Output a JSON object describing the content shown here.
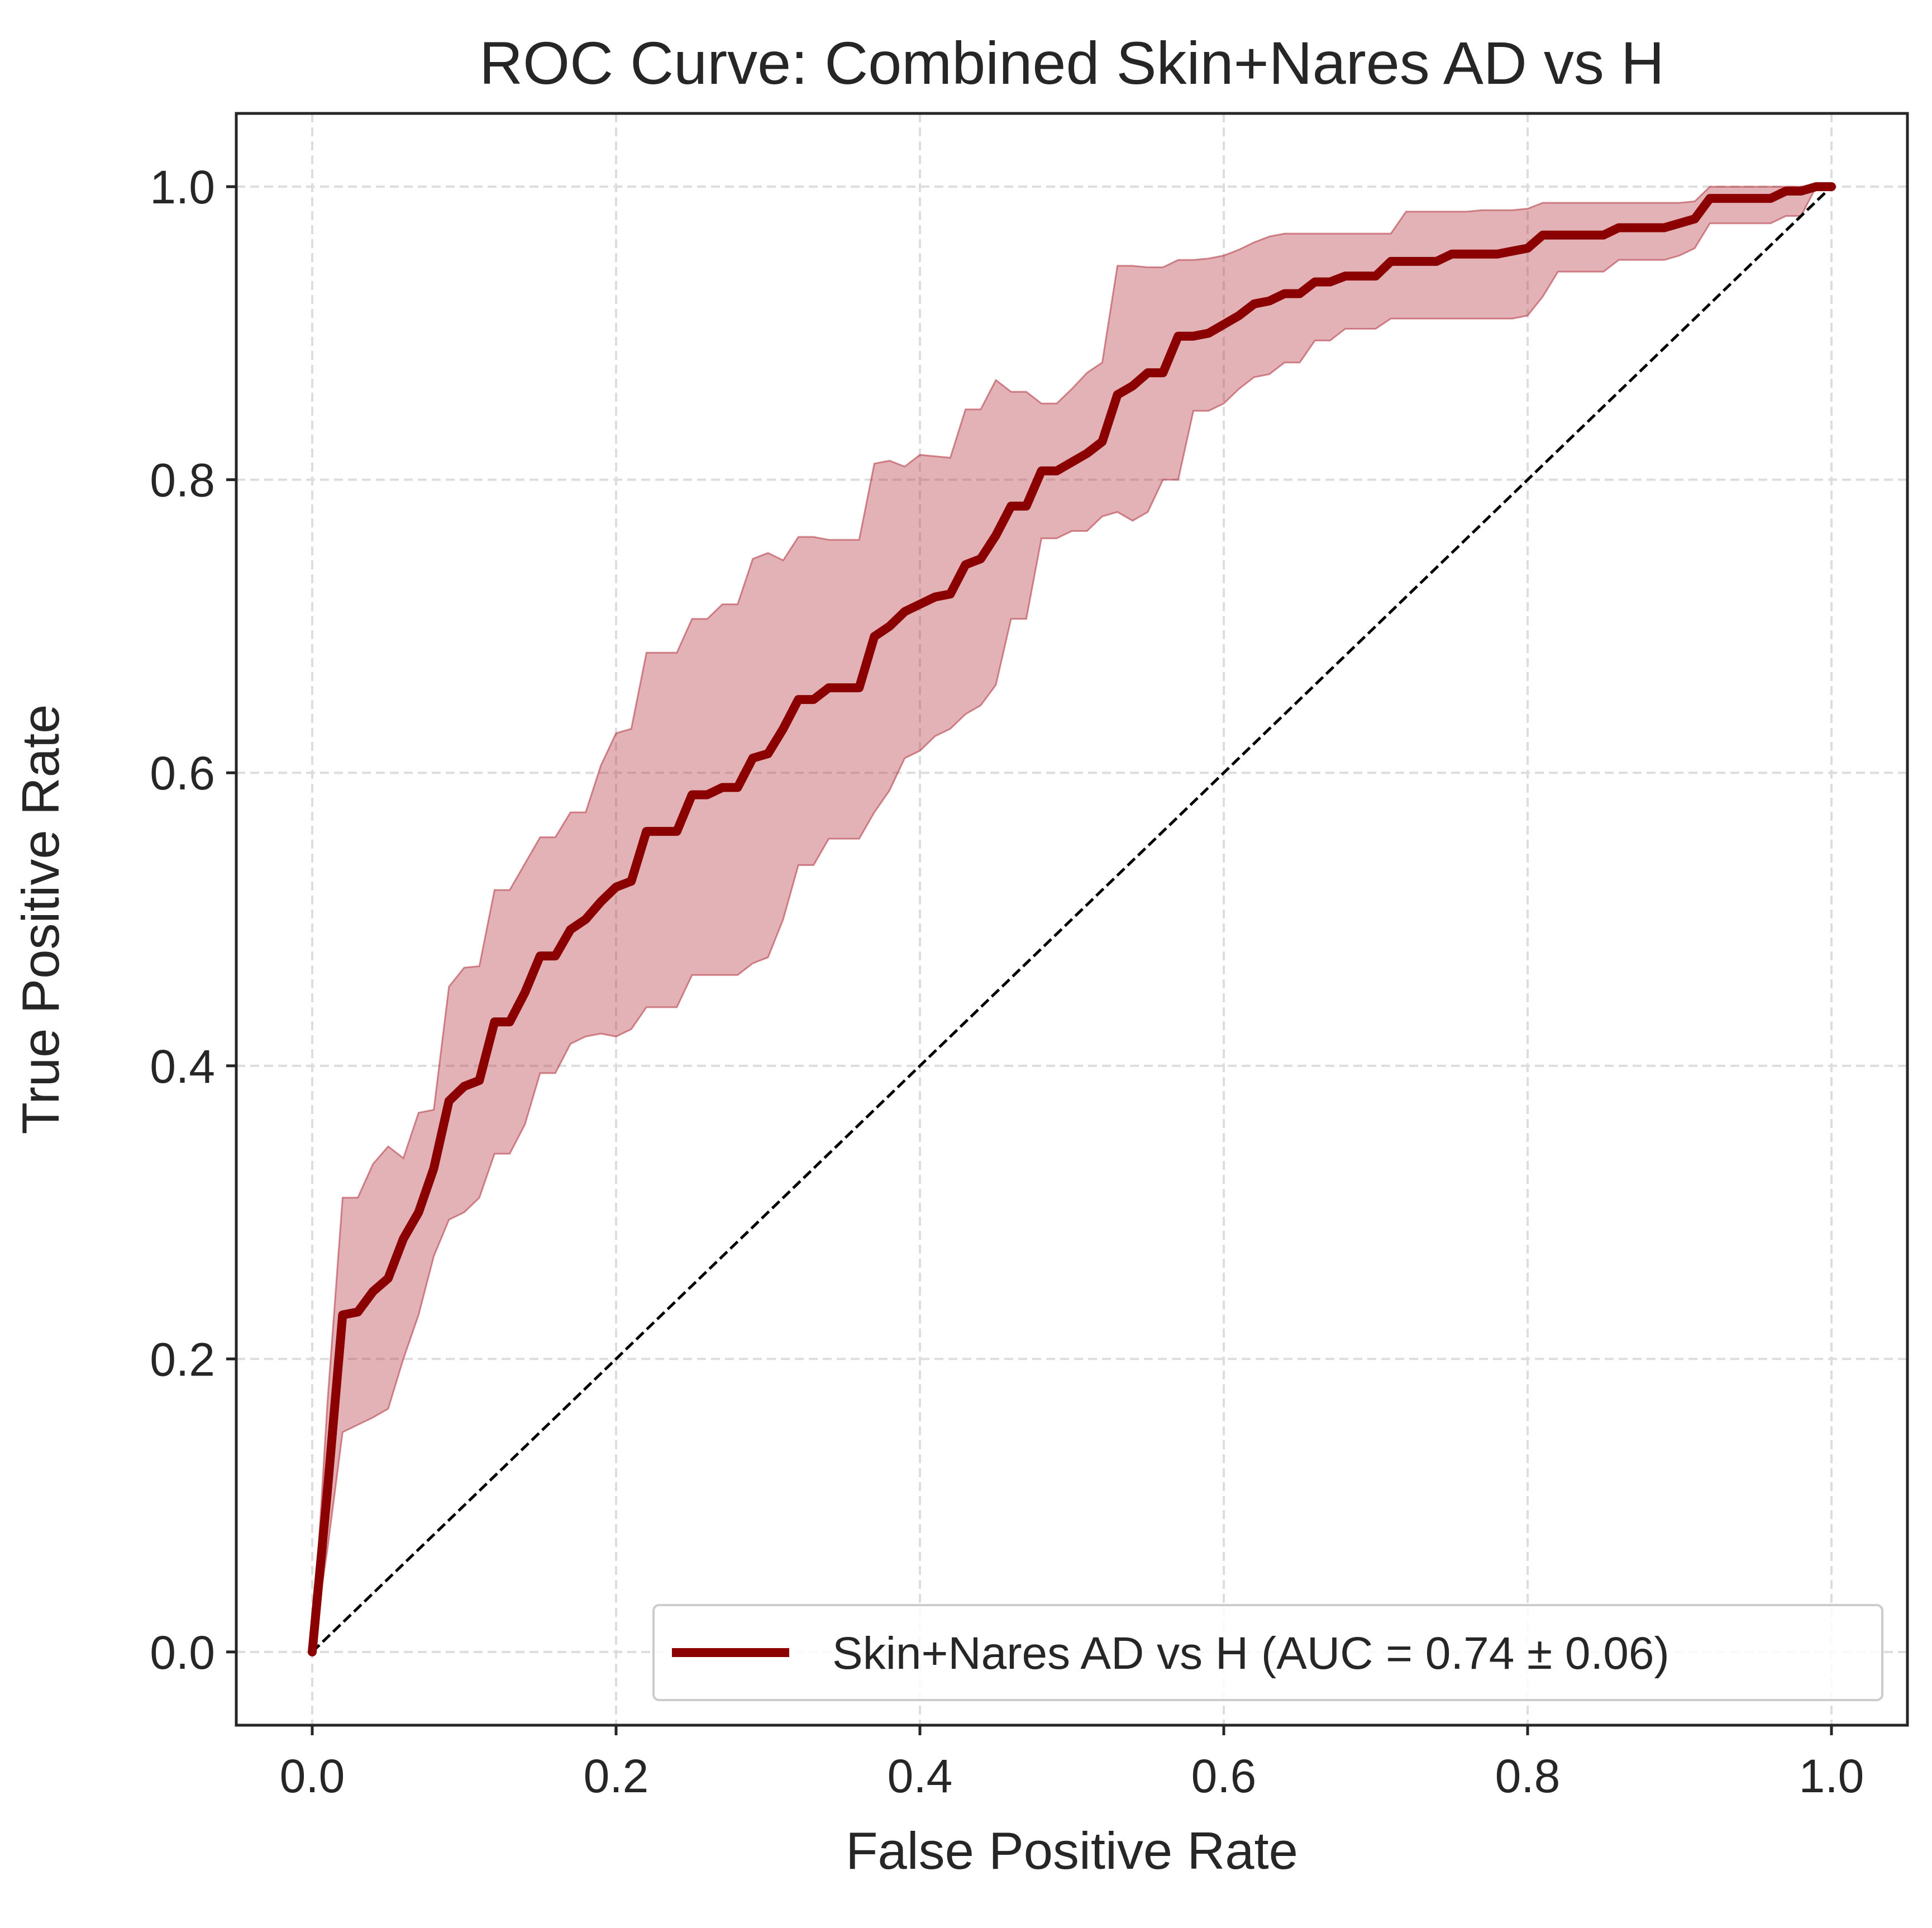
{
  "chart_data": {
    "type": "line",
    "title": "ROC Curve: Combined Skin+Nares AD vs H",
    "xlabel": "False Positive Rate",
    "ylabel": "True Positive Rate",
    "xlim": [
      -0.05,
      1.05
    ],
    "ylim": [
      -0.05,
      1.05
    ],
    "xticks": [
      0.0,
      0.2,
      0.4,
      0.6,
      0.8,
      1.0
    ],
    "yticks": [
      0.0,
      0.2,
      0.4,
      0.6,
      0.8,
      1.0
    ],
    "xtick_labels": [
      "0.0",
      "0.2",
      "0.4",
      "0.6",
      "0.8",
      "1.0"
    ],
    "ytick_labels": [
      "0.0",
      "0.2",
      "0.4",
      "0.6",
      "0.8",
      "1.0"
    ],
    "grid": true,
    "legend_position": "lower-right",
    "colors": {
      "mean": "#8b0000",
      "band": "#b2343f",
      "chance": "#000000",
      "axes": "#262626",
      "grid": "#dddddd"
    },
    "series": [
      {
        "name": "Skin+Nares AD vs H (AUC = 0.74 ± 0.06)",
        "style": "solid",
        "x": [
          0.0,
          0.01,
          0.02,
          0.03,
          0.04,
          0.05,
          0.06,
          0.07,
          0.08,
          0.09,
          0.1,
          0.11,
          0.12,
          0.13,
          0.14,
          0.15,
          0.16,
          0.17,
          0.18,
          0.19,
          0.2,
          0.21,
          0.22,
          0.23,
          0.24,
          0.25,
          0.26,
          0.27,
          0.28,
          0.29,
          0.3,
          0.31,
          0.32,
          0.33,
          0.34,
          0.35,
          0.36,
          0.37,
          0.38,
          0.39,
          0.4,
          0.41,
          0.42,
          0.43,
          0.44,
          0.45,
          0.46,
          0.47,
          0.48,
          0.49,
          0.5,
          0.51,
          0.52,
          0.53,
          0.54,
          0.55,
          0.56,
          0.57,
          0.58,
          0.59,
          0.6,
          0.61,
          0.62,
          0.63,
          0.64,
          0.65,
          0.66,
          0.67,
          0.68,
          0.69,
          0.7,
          0.71,
          0.72,
          0.73,
          0.74,
          0.75,
          0.76,
          0.77,
          0.78,
          0.79,
          0.8,
          0.81,
          0.82,
          0.83,
          0.84,
          0.85,
          0.86,
          0.87,
          0.88,
          0.89,
          0.9,
          0.91,
          0.92,
          0.93,
          0.94,
          0.95,
          0.96,
          0.97,
          0.98,
          0.99,
          1.0
        ],
        "y": [
          0.0,
          0.11,
          0.23,
          0.232,
          0.246,
          0.255,
          0.282,
          0.3,
          0.33,
          0.376,
          0.386,
          0.39,
          0.43,
          0.43,
          0.45,
          0.475,
          0.475,
          0.493,
          0.5,
          0.512,
          0.522,
          0.526,
          0.56,
          0.56,
          0.56,
          0.585,
          0.585,
          0.59,
          0.59,
          0.61,
          0.613,
          0.63,
          0.65,
          0.65,
          0.658,
          0.658,
          0.658,
          0.693,
          0.7,
          0.71,
          0.715,
          0.72,
          0.722,
          0.742,
          0.746,
          0.762,
          0.782,
          0.782,
          0.806,
          0.806,
          0.812,
          0.818,
          0.826,
          0.858,
          0.864,
          0.873,
          0.873,
          0.898,
          0.898,
          0.9,
          0.906,
          0.912,
          0.92,
          0.922,
          0.927,
          0.927,
          0.935,
          0.935,
          0.939,
          0.939,
          0.939,
          0.949,
          0.949,
          0.949,
          0.949,
          0.954,
          0.954,
          0.954,
          0.954,
          0.956,
          0.958,
          0.967,
          0.967,
          0.967,
          0.967,
          0.967,
          0.972,
          0.972,
          0.972,
          0.972,
          0.975,
          0.978,
          0.992,
          0.992,
          0.992,
          0.992,
          0.992,
          0.997,
          0.997,
          1.0,
          1.0
        ],
        "lower": [
          0.0,
          0.07,
          0.15,
          0.155,
          0.16,
          0.166,
          0.2,
          0.23,
          0.27,
          0.295,
          0.3,
          0.31,
          0.34,
          0.34,
          0.36,
          0.395,
          0.395,
          0.415,
          0.42,
          0.422,
          0.42,
          0.425,
          0.44,
          0.44,
          0.44,
          0.462,
          0.462,
          0.462,
          0.462,
          0.47,
          0.474,
          0.5,
          0.537,
          0.537,
          0.555,
          0.555,
          0.555,
          0.573,
          0.588,
          0.61,
          0.615,
          0.625,
          0.63,
          0.64,
          0.646,
          0.66,
          0.705,
          0.705,
          0.76,
          0.76,
          0.765,
          0.765,
          0.775,
          0.778,
          0.772,
          0.778,
          0.8,
          0.8,
          0.847,
          0.847,
          0.852,
          0.862,
          0.87,
          0.872,
          0.88,
          0.88,
          0.895,
          0.895,
          0.903,
          0.903,
          0.903,
          0.91,
          0.91,
          0.91,
          0.91,
          0.91,
          0.91,
          0.91,
          0.91,
          0.91,
          0.912,
          0.925,
          0.942,
          0.942,
          0.942,
          0.942,
          0.95,
          0.95,
          0.95,
          0.95,
          0.953,
          0.958,
          0.975,
          0.975,
          0.975,
          0.975,
          0.975,
          0.98,
          0.98,
          1.0,
          1.0
        ],
        "upper": [
          0.0,
          0.17,
          0.31,
          0.31,
          0.333,
          0.345,
          0.337,
          0.368,
          0.37,
          0.454,
          0.467,
          0.468,
          0.52,
          0.52,
          0.538,
          0.556,
          0.556,
          0.573,
          0.573,
          0.605,
          0.627,
          0.63,
          0.682,
          0.682,
          0.682,
          0.705,
          0.705,
          0.715,
          0.715,
          0.746,
          0.75,
          0.745,
          0.761,
          0.761,
          0.759,
          0.759,
          0.759,
          0.811,
          0.813,
          0.809,
          0.817,
          0.816,
          0.815,
          0.848,
          0.848,
          0.868,
          0.86,
          0.86,
          0.852,
          0.852,
          0.862,
          0.873,
          0.88,
          0.946,
          0.946,
          0.945,
          0.945,
          0.95,
          0.95,
          0.951,
          0.953,
          0.957,
          0.962,
          0.966,
          0.968,
          0.968,
          0.968,
          0.968,
          0.968,
          0.968,
          0.968,
          0.968,
          0.983,
          0.983,
          0.983,
          0.983,
          0.983,
          0.984,
          0.984,
          0.984,
          0.985,
          0.989,
          0.989,
          0.989,
          0.989,
          0.989,
          0.989,
          0.989,
          0.989,
          0.989,
          0.989,
          0.99,
          1.0,
          1.0,
          1.0,
          1.0,
          1.0,
          1.0,
          1.0,
          1.0,
          1.0
        ]
      },
      {
        "name": "",
        "style": "dashed",
        "x": [
          0.0,
          1.0
        ],
        "y": [
          0.0,
          1.0
        ]
      }
    ]
  }
}
